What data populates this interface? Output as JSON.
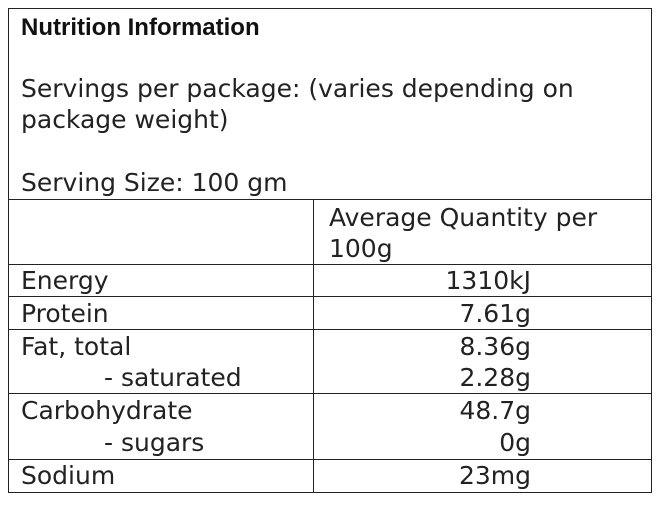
{
  "panel": {
    "title": "Nutrition Information",
    "servings_per_package": "Servings per package: (varies depending on package weight)",
    "serving_size": "Serving Size: 100 gm"
  },
  "table": {
    "column_header": "Average Quantity per 100g",
    "rows": [
      {
        "label": "Energy",
        "value": "1310kJ"
      },
      {
        "label": "Protein",
        "value": "7.61g"
      },
      {
        "label": "Fat, total",
        "value": "8.36g",
        "sub_label": "- saturated",
        "sub_value": "2.28g"
      },
      {
        "label": "Carbohydrate",
        "value": "48.7g",
        "sub_label": "- sugars",
        "sub_value": "0g"
      },
      {
        "label": "Sodium",
        "value": "23mg"
      }
    ]
  }
}
